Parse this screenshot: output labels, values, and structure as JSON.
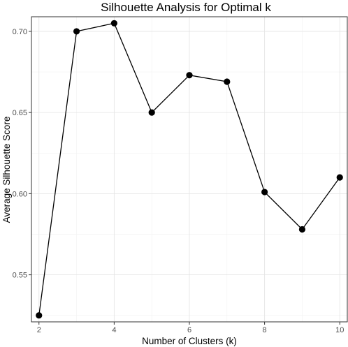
{
  "chart_data": {
    "type": "line",
    "title": "Silhouette Analysis for Optimal k",
    "xlabel": "Number of Clusters (k)",
    "ylabel": "Average Silhouette Score",
    "x": [
      2,
      3,
      4,
      5,
      6,
      7,
      8,
      9,
      10
    ],
    "series": [
      {
        "values": [
          0.525,
          0.7,
          0.705,
          0.65,
          0.673,
          0.669,
          0.601,
          0.578,
          0.61
        ]
      }
    ],
    "xlim": [
      1.8,
      10.2
    ],
    "ylim": [
      0.521,
      0.709
    ],
    "xticks": [
      2,
      4,
      6,
      8,
      10
    ],
    "xtick_labels": [
      "2",
      "4",
      "6",
      "8",
      "10"
    ],
    "yticks": [
      0.55,
      0.6,
      0.65,
      0.7
    ],
    "ytick_labels": [
      "0.55",
      "0.60",
      "0.65",
      "0.70"
    ],
    "grid": true,
    "legend": "none",
    "line_color": "#000000",
    "point_color": "#000000"
  }
}
